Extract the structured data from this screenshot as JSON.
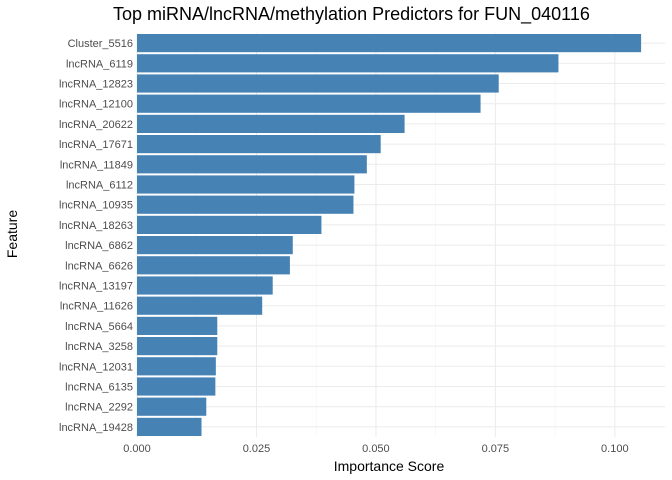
{
  "chart_data": {
    "type": "bar",
    "orientation": "horizontal",
    "title": "Top miRNA/lncRNA/methylation Predictors for FUN_040116",
    "xlabel": "Importance Score",
    "ylabel": "Feature",
    "xlim": [
      0,
      0.1105
    ],
    "x_ticks": [
      "0.000",
      "0.025",
      "0.050",
      "0.075",
      "0.100"
    ],
    "x_tick_values": [
      0,
      0.025,
      0.05,
      0.075,
      0.1
    ],
    "grid": true,
    "bar_color": "#4682b4",
    "categories": [
      "Cluster_5516",
      "lncRNA_6119",
      "lncRNA_12823",
      "lncRNA_12100",
      "lncRNA_20622",
      "lncRNA_17671",
      "lncRNA_11849",
      "lncRNA_6112",
      "lncRNA_10935",
      "lncRNA_18263",
      "lncRNA_6862",
      "lncRNA_6626",
      "lncRNA_13197",
      "lncRNA_11626",
      "lncRNA_5664",
      "lncRNA_3258",
      "lncRNA_12031",
      "lncRNA_6135",
      "lncRNA_2292",
      "lncRNA_19428"
    ],
    "values": [
      0.1055,
      0.0882,
      0.0757,
      0.0719,
      0.056,
      0.051,
      0.0481,
      0.0455,
      0.0453,
      0.0386,
      0.0326,
      0.032,
      0.0284,
      0.0262,
      0.0168,
      0.0168,
      0.0165,
      0.0164,
      0.0145,
      0.0135
    ]
  }
}
